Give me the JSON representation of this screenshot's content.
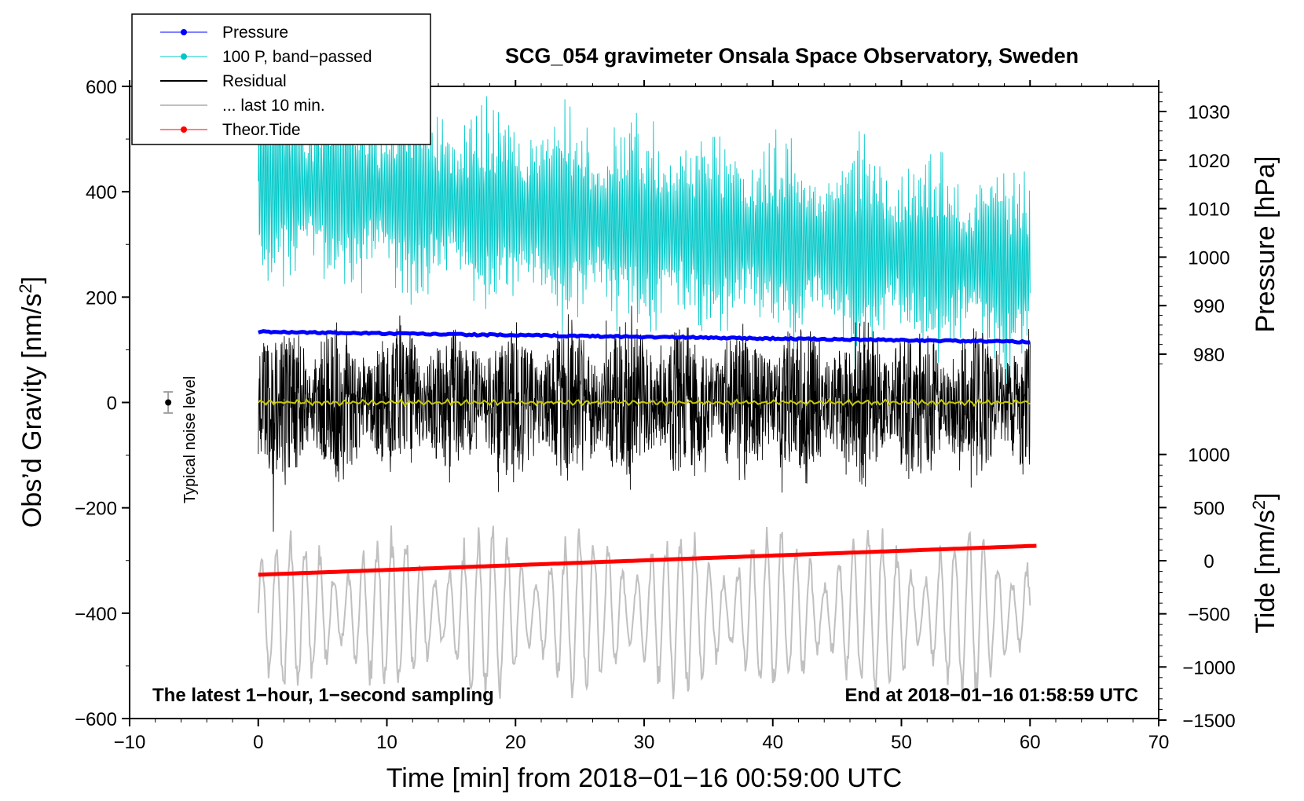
{
  "chart_data": {
    "type": "line",
    "title": "SCG_054 gravimeter Onsala Space Observatory, Sweden",
    "xlabel": "Time [min] from 2018−01−16 00:59:00 UTC",
    "ylabel": "Obs’d Gravity [nm/s",
    "ylabel_sup": "2",
    "ylabel_tail": "]",
    "y2label": "Pressure [hPa]",
    "y3label": "Tide [nm/s",
    "y3label_sup": "2",
    "y3label_tail": "]",
    "xlim": [
      -10,
      70
    ],
    "ylim": [
      -600,
      600
    ],
    "x_ticks": [
      -10,
      0,
      10,
      20,
      30,
      40,
      50,
      60,
      70
    ],
    "x_tick_labels": [
      "−10",
      "0",
      "10",
      "20",
      "30",
      "40",
      "50",
      "60",
      "70"
    ],
    "y_ticks": [
      -600,
      -400,
      -200,
      0,
      200,
      400,
      600
    ],
    "y_tick_labels": [
      "−600",
      "−400",
      "−200",
      "0",
      "200",
      "400",
      "600"
    ],
    "pressure_axis": {
      "ticks": [
        980,
        990,
        1000,
        1010,
        1020,
        1030
      ],
      "tick_labels": [
        "980",
        "990",
        "1000",
        "1010",
        "1020",
        "1030"
      ]
    },
    "tide_axis": {
      "ticks": [
        -1500,
        -1000,
        -500,
        0,
        500,
        1000
      ],
      "tick_labels": [
        "−1500",
        "−1000",
        "−500",
        "0",
        "500",
        "1000"
      ]
    },
    "legend": {
      "position": "top-left",
      "entries": [
        {
          "label": "Pressure",
          "color": "#0000ff",
          "style": "line-marker"
        },
        {
          "label": "100 P, band−passed",
          "color": "#00c8c8",
          "style": "line-marker"
        },
        {
          "label": "Residual",
          "color": "#000000",
          "style": "line"
        },
        {
          "label": "... last 10 min.",
          "color": "#c0c0c0",
          "style": "line"
        },
        {
          "label": "Theor.Tide",
          "color": "#ff0000",
          "style": "line-marker"
        }
      ]
    },
    "series": [
      {
        "name": "Pressure",
        "color": "#0000ff",
        "x": [
          0,
          60
        ],
        "y": [
          134,
          115
        ],
        "approx": "nearly linear, gravity-axis units"
      },
      {
        "name": "100 P, band−passed",
        "color": "#00c8c8",
        "x_range": [
          0,
          60
        ],
        "baseline_start": 420,
        "baseline_end": 250,
        "amplitude": 160,
        "approx": "dense oscillation"
      },
      {
        "name": "Residual",
        "color": "#000000",
        "x_range": [
          0,
          60
        ],
        "center": 0,
        "amplitude": 150,
        "approx": "dense noise"
      },
      {
        "name": "Smoothed residual",
        "color": "#c8c800",
        "x_range": [
          0,
          60
        ],
        "center": 0,
        "amplitude": 6
      },
      {
        "name": "... last 10 min.",
        "color": "#c0c0c0",
        "x_range": [
          0,
          60
        ],
        "center": -400,
        "amplitude": 140,
        "approx": "oscillation"
      },
      {
        "name": "Theor.Tide",
        "color": "#ff0000",
        "x": [
          0,
          60.5
        ],
        "y": [
          -327,
          -272
        ]
      }
    ],
    "noise_marker": {
      "x": -7,
      "y": 0,
      "err": 20,
      "label": "Typical noise level"
    },
    "annotations": {
      "bottom_left": "The latest 1−hour, 1−second sampling",
      "bottom_right": "End at 2018−01−16 01:58:59 UTC"
    },
    "colors": {
      "pressure": "#0000ff",
      "bandpassed": "#00c8c8",
      "residual": "#000000",
      "smoothed": "#c8c800",
      "last10": "#c0c0c0",
      "tide": "#ff0000",
      "noise_bar": "#a0a0a0"
    }
  }
}
